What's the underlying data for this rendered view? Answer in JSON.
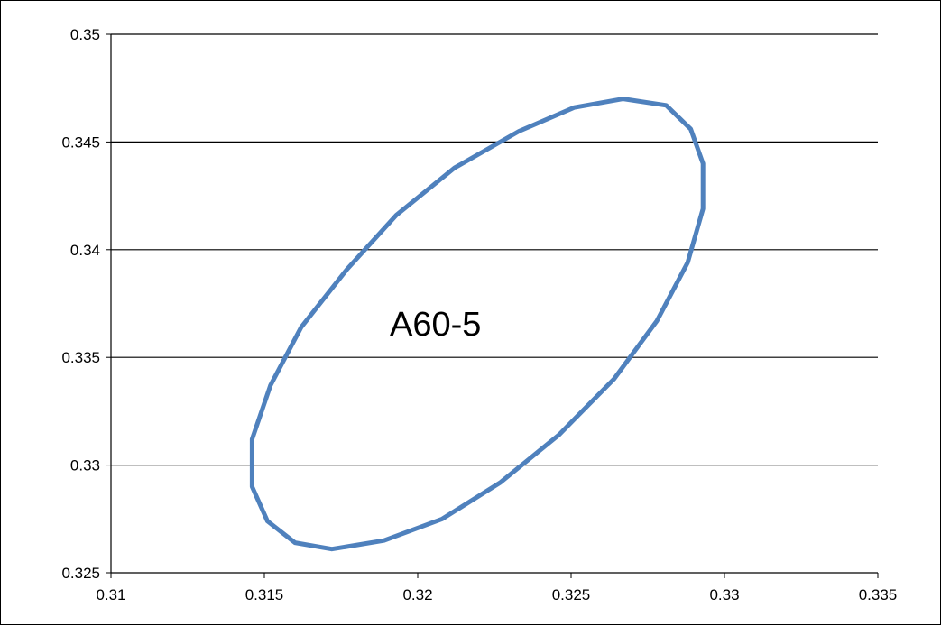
{
  "chart_data": {
    "type": "line",
    "title": "",
    "xlabel": "",
    "ylabel": "",
    "xlim": [
      0.31,
      0.335
    ],
    "ylim": [
      0.325,
      0.35
    ],
    "grid": {
      "horizontal": true,
      "vertical": false
    },
    "x_ticks": [
      "0.31",
      "0.315",
      "0.32",
      "0.325",
      "0.33",
      "0.335"
    ],
    "y_ticks": [
      "0.325",
      "0.33",
      "0.335",
      "0.34",
      "0.345",
      "0.35"
    ],
    "annotation": "A60-5",
    "series": [
      {
        "color": "#4f81bd",
        "closed": true,
        "points": [
          [
            0.3267,
            0.347
          ],
          [
            0.3281,
            0.3467
          ],
          [
            0.3289,
            0.3456
          ],
          [
            0.3293,
            0.344
          ],
          [
            0.3293,
            0.3419
          ],
          [
            0.3288,
            0.3394
          ],
          [
            0.3278,
            0.3367
          ],
          [
            0.3264,
            0.334
          ],
          [
            0.3246,
            0.3314
          ],
          [
            0.3227,
            0.3292
          ],
          [
            0.3208,
            0.3275
          ],
          [
            0.3189,
            0.3265
          ],
          [
            0.3172,
            0.3261
          ],
          [
            0.316,
            0.3264
          ],
          [
            0.3151,
            0.3274
          ],
          [
            0.3146,
            0.329
          ],
          [
            0.3146,
            0.3312
          ],
          [
            0.3152,
            0.3337
          ],
          [
            0.3162,
            0.3364
          ],
          [
            0.3177,
            0.3391
          ],
          [
            0.3193,
            0.3416
          ],
          [
            0.3212,
            0.3438
          ],
          [
            0.3233,
            0.3455
          ],
          [
            0.3251,
            0.3466
          ],
          [
            0.3267,
            0.347
          ]
        ]
      }
    ]
  }
}
